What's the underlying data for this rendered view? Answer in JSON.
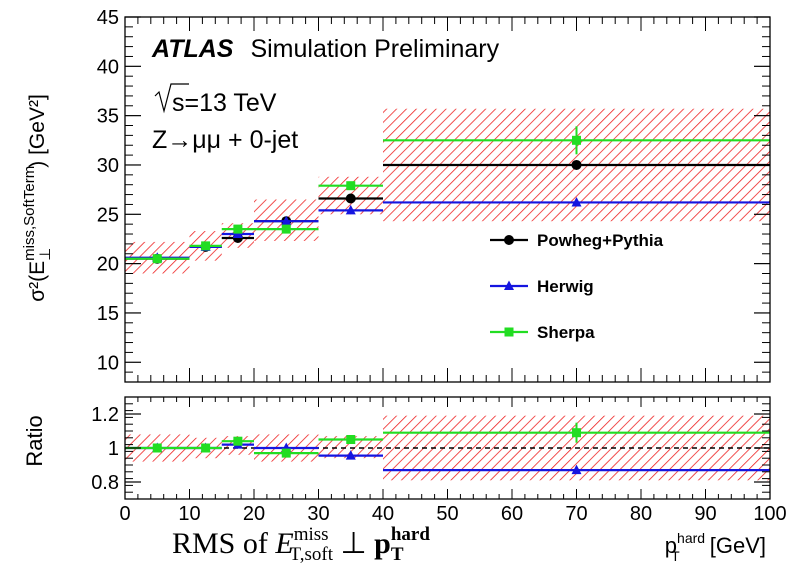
{
  "annotations": {
    "experiment": "ATLAS",
    "status": "Simulation Preliminary",
    "energy_sqrt": "s",
    "energy_rest": "=13 TeV",
    "process": "Z→μμ + 0-jet"
  },
  "colors": {
    "powheg": "#000000",
    "herwig": "#1515e0",
    "sherpa": "#22dd22",
    "band": "#ee2222"
  },
  "chart_data": [
    {
      "type": "line",
      "panel": "main",
      "ylabel_main": "σ²(E",
      "ylabel_sub": "⊥",
      "ylabel_sup": "miss,SoftTerm",
      "ylabel_tail": ") [GeV²]",
      "ylim": [
        8,
        45
      ],
      "xlim": [
        0,
        100
      ],
      "y_ticks": [
        "10",
        "15",
        "20",
        "25",
        "30",
        "35",
        "40",
        "45"
      ],
      "x_bins": [
        [
          0,
          10
        ],
        [
          10,
          15
        ],
        [
          15,
          20
        ],
        [
          20,
          30
        ],
        [
          30,
          40
        ],
        [
          40,
          100
        ]
      ],
      "x_centers": [
        5,
        12.5,
        17.5,
        25,
        35,
        70
      ],
      "series": [
        {
          "name": "Powheg+Pythia",
          "marker": "circle",
          "values": [
            20.5,
            21.7,
            22.6,
            24.3,
            26.6,
            30.0
          ]
        },
        {
          "name": "Herwig",
          "marker": "triangle",
          "values": [
            20.6,
            21.7,
            23.0,
            24.3,
            25.4,
            26.2
          ]
        },
        {
          "name": "Sherpa",
          "marker": "square",
          "values": [
            20.5,
            21.8,
            23.5,
            23.5,
            27.9,
            32.5
          ]
        }
      ],
      "band": {
        "lower": [
          19.0,
          20.3,
          21.6,
          22.3,
          25.0,
          24.3
        ],
        "upper": [
          22.2,
          23.3,
          24.1,
          26.5,
          28.8,
          35.7
        ]
      },
      "legend": {
        "placement": "right",
        "entries": [
          "Powheg+Pythia",
          "Herwig",
          "Sherpa"
        ]
      }
    },
    {
      "type": "line",
      "panel": "ratio",
      "ylabel": "Ratio",
      "ylim": [
        0.7,
        1.3
      ],
      "xlim": [
        0,
        100
      ],
      "y_ticks": [
        "0.8",
        "1",
        "1.2"
      ],
      "x_ticks": [
        "0",
        "10",
        "20",
        "30",
        "40",
        "50",
        "60",
        "70",
        "80",
        "90",
        "100"
      ],
      "x_bins": [
        [
          0,
          10
        ],
        [
          10,
          15
        ],
        [
          15,
          20
        ],
        [
          20,
          30
        ],
        [
          30,
          40
        ],
        [
          40,
          100
        ]
      ],
      "x_centers": [
        5,
        12.5,
        17.5,
        25,
        35,
        70
      ],
      "reference": 1.0,
      "series": [
        {
          "name": "Herwig",
          "marker": "triangle",
          "values": [
            1.0,
            1.0,
            1.02,
            1.0,
            0.955,
            0.87
          ]
        },
        {
          "name": "Sherpa",
          "marker": "square",
          "values": [
            1.0,
            1.0,
            1.04,
            0.97,
            1.05,
            1.09
          ]
        }
      ],
      "band": {
        "lower": [
          0.92,
          0.94,
          0.96,
          0.92,
          0.94,
          0.81
        ],
        "upper": [
          1.08,
          1.06,
          1.07,
          1.08,
          1.07,
          1.19
        ]
      },
      "xlabel": "p",
      "xlabel_sup": "hard",
      "xlabel_sub": "T",
      "xlabel_unit": " [GeV]"
    }
  ],
  "caption": {
    "prefix": "RMS of ",
    "e": "E",
    "e_sup": "miss",
    "e_sub": "T,soft",
    "perp": " ⊥ ",
    "p": "p",
    "p_sup": "hard",
    "p_sub": "T"
  }
}
